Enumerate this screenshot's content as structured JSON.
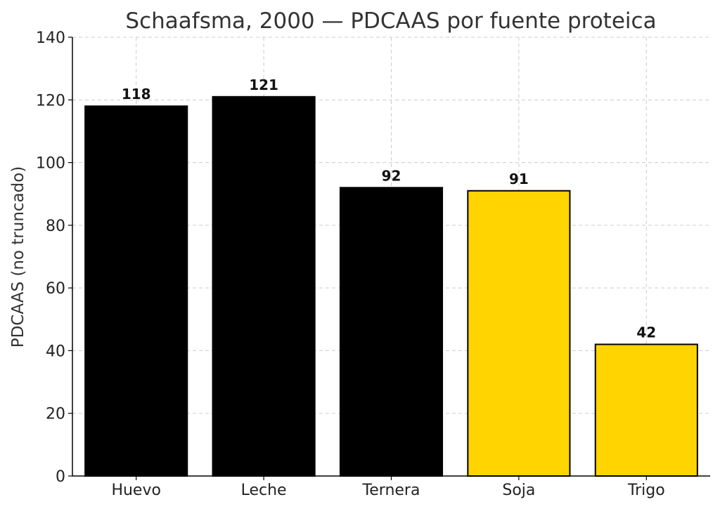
{
  "chart_data": {
    "type": "bar",
    "title": "Schaafsma, 2000 — PDCAAS por fuente proteica",
    "xlabel": "",
    "ylabel": "PDCAAS (no truncado)",
    "categories": [
      "Huevo",
      "Leche",
      "Ternera",
      "Soja",
      "Trigo"
    ],
    "values": [
      118,
      121,
      92,
      91,
      42
    ],
    "data_labels": [
      "118",
      "121",
      "92",
      "91",
      "42"
    ],
    "bar_colors": [
      "#000000",
      "#000000",
      "#000000",
      "#FFD400",
      "#FFD400"
    ],
    "ylim": [
      0,
      140
    ],
    "yticks": [
      0,
      20,
      40,
      60,
      80,
      100,
      120,
      140
    ],
    "ytick_labels": [
      "0",
      "20",
      "40",
      "60",
      "80",
      "100",
      "120",
      "140"
    ],
    "grid": true
  }
}
